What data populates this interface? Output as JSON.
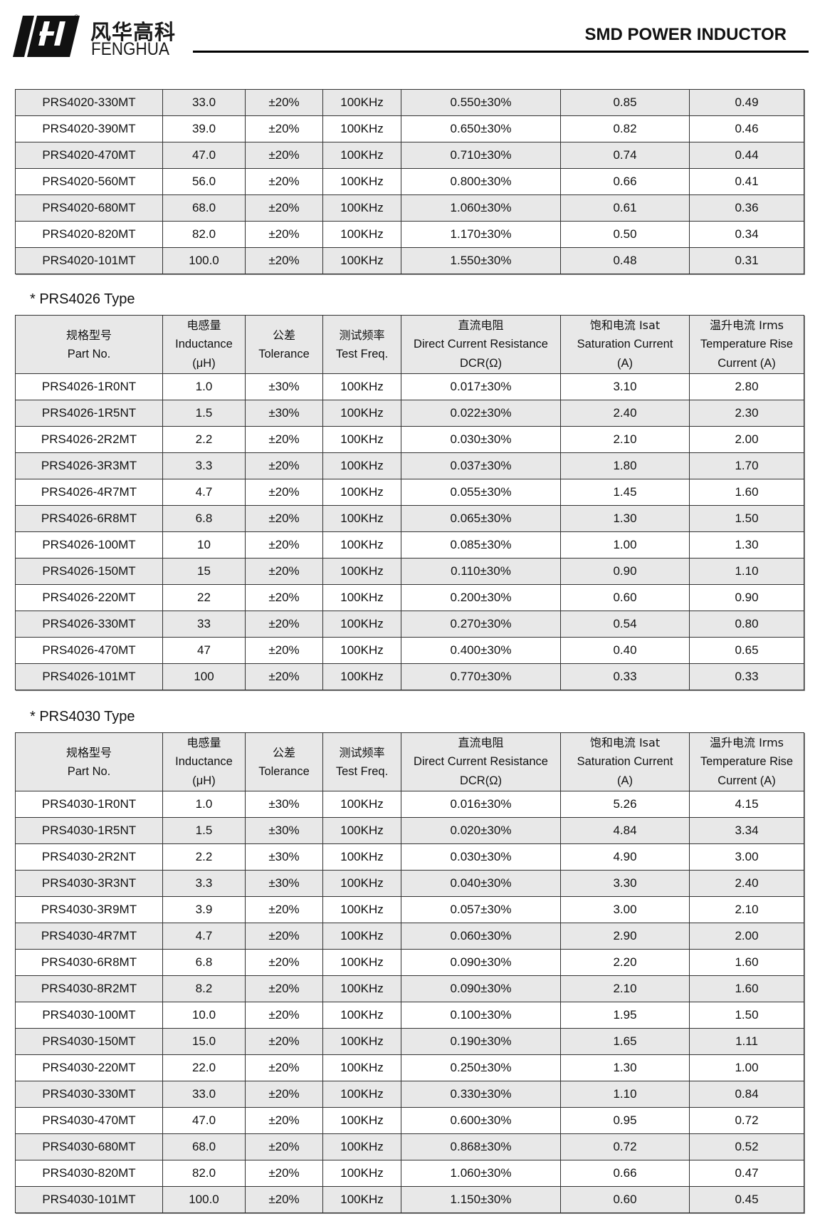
{
  "header": {
    "brand_cn": "风华高科",
    "brand_en": "FENGHUA",
    "registered_mark": "®",
    "title": "SMD POWER INDUCTOR"
  },
  "columns": [
    {
      "cn": "规格型号",
      "en": [
        "Part No."
      ]
    },
    {
      "cn": "电感量",
      "en": [
        "Inductance",
        "(μH)"
      ]
    },
    {
      "cn": "公差",
      "en": [
        "Tolerance"
      ]
    },
    {
      "cn": "测试频率",
      "en": [
        "Test Freq."
      ]
    },
    {
      "cn": "直流电阻",
      "en": [
        "Direct Current Resistance",
        "DCR(Ω)"
      ]
    },
    {
      "cn": "饱和电流  Isat",
      "en": [
        "Saturation Current",
        "(A)"
      ]
    },
    {
      "cn": "温升电流  Irms",
      "en": [
        "Temperature Rise",
        "Current (A)"
      ]
    }
  ],
  "tables": [
    {
      "title": "",
      "show_header": false,
      "first_row_gray": true,
      "rows": [
        [
          "PRS4020-330MT",
          "33.0",
          "±20%",
          "100KHz",
          "0.550±30%",
          "0.85",
          "0.49"
        ],
        [
          "PRS4020-390MT",
          "39.0",
          "±20%",
          "100KHz",
          "0.650±30%",
          "0.82",
          "0.46"
        ],
        [
          "PRS4020-470MT",
          "47.0",
          "±20%",
          "100KHz",
          "0.710±30%",
          "0.74",
          "0.44"
        ],
        [
          "PRS4020-560MT",
          "56.0",
          "±20%",
          "100KHz",
          "0.800±30%",
          "0.66",
          "0.41"
        ],
        [
          "PRS4020-680MT",
          "68.0",
          "±20%",
          "100KHz",
          "1.060±30%",
          "0.61",
          "0.36"
        ],
        [
          "PRS4020-820MT",
          "82.0",
          "±20%",
          "100KHz",
          "1.170±30%",
          "0.50",
          "0.34"
        ],
        [
          "PRS4020-101MT",
          "100.0",
          "±20%",
          "100KHz",
          "1.550±30%",
          "0.48",
          "0.31"
        ]
      ]
    },
    {
      "title": "* PRS4026 Type",
      "show_header": true,
      "first_row_gray": false,
      "rows": [
        [
          "PRS4026-1R0NT",
          "1.0",
          "±30%",
          "100KHz",
          "0.017±30%",
          "3.10",
          "2.80"
        ],
        [
          "PRS4026-1R5NT",
          "1.5",
          "±30%",
          "100KHz",
          "0.022±30%",
          "2.40",
          "2.30"
        ],
        [
          "PRS4026-2R2MT",
          "2.2",
          "±20%",
          "100KHz",
          "0.030±30%",
          "2.10",
          "2.00"
        ],
        [
          "PRS4026-3R3MT",
          "3.3",
          "±20%",
          "100KHz",
          "0.037±30%",
          "1.80",
          "1.70"
        ],
        [
          "PRS4026-4R7MT",
          "4.7",
          "±20%",
          "100KHz",
          "0.055±30%",
          "1.45",
          "1.60"
        ],
        [
          "PRS4026-6R8MT",
          "6.8",
          "±20%",
          "100KHz",
          "0.065±30%",
          "1.30",
          "1.50"
        ],
        [
          "PRS4026-100MT",
          "10",
          "±20%",
          "100KHz",
          "0.085±30%",
          "1.00",
          "1.30"
        ],
        [
          "PRS4026-150MT",
          "15",
          "±20%",
          "100KHz",
          "0.110±30%",
          "0.90",
          "1.10"
        ],
        [
          "PRS4026-220MT",
          "22",
          "±20%",
          "100KHz",
          "0.200±30%",
          "0.60",
          "0.90"
        ],
        [
          "PRS4026-330MT",
          "33",
          "±20%",
          "100KHz",
          "0.270±30%",
          "0.54",
          "0.80"
        ],
        [
          "PRS4026-470MT",
          "47",
          "±20%",
          "100KHz",
          "0.400±30%",
          "0.40",
          "0.65"
        ],
        [
          "PRS4026-101MT",
          "100",
          "±20%",
          "100KHz",
          "0.770±30%",
          "0.33",
          "0.33"
        ]
      ]
    },
    {
      "title": "* PRS4030 Type",
      "show_header": true,
      "first_row_gray": false,
      "rows": [
        [
          "PRS4030-1R0NT",
          "1.0",
          "±30%",
          "100KHz",
          "0.016±30%",
          "5.26",
          "4.15"
        ],
        [
          "PRS4030-1R5NT",
          "1.5",
          "±30%",
          "100KHz",
          "0.020±30%",
          "4.84",
          "3.34"
        ],
        [
          "PRS4030-2R2NT",
          "2.2",
          "±30%",
          "100KHz",
          "0.030±30%",
          "4.90",
          "3.00"
        ],
        [
          "PRS4030-3R3NT",
          "3.3",
          "±30%",
          "100KHz",
          "0.040±30%",
          "3.30",
          "2.40"
        ],
        [
          "PRS4030-3R9MT",
          "3.9",
          "±20%",
          "100KHz",
          "0.057±30%",
          "3.00",
          "2.10"
        ],
        [
          "PRS4030-4R7MT",
          "4.7",
          "±20%",
          "100KHz",
          "0.060±30%",
          "2.90",
          "2.00"
        ],
        [
          "PRS4030-6R8MT",
          "6.8",
          "±20%",
          "100KHz",
          "0.090±30%",
          "2.20",
          "1.60"
        ],
        [
          "PRS4030-8R2MT",
          "8.2",
          "±20%",
          "100KHz",
          "0.090±30%",
          "2.10",
          "1.60"
        ],
        [
          "PRS4030-100MT",
          "10.0",
          "±20%",
          "100KHz",
          "0.100±30%",
          "1.95",
          "1.50"
        ],
        [
          "PRS4030-150MT",
          "15.0",
          "±20%",
          "100KHz",
          "0.190±30%",
          "1.65",
          "1.11"
        ],
        [
          "PRS4030-220MT",
          "22.0",
          "±20%",
          "100KHz",
          "0.250±30%",
          "1.30",
          "1.00"
        ],
        [
          "PRS4030-330MT",
          "33.0",
          "±20%",
          "100KHz",
          "0.330±30%",
          "1.10",
          "0.84"
        ],
        [
          "PRS4030-470MT",
          "47.0",
          "±20%",
          "100KHz",
          "0.600±30%",
          "0.95",
          "0.72"
        ],
        [
          "PRS4030-680MT",
          "68.0",
          "±20%",
          "100KHz",
          "0.868±30%",
          "0.72",
          "0.52"
        ],
        [
          "PRS4030-820MT",
          "82.0",
          "±20%",
          "100KHz",
          "1.060±30%",
          "0.66",
          "0.47"
        ],
        [
          "PRS4030-101MT",
          "100.0",
          "±20%",
          "100KHz",
          "1.150±30%",
          "0.60",
          "0.45"
        ]
      ]
    }
  ]
}
